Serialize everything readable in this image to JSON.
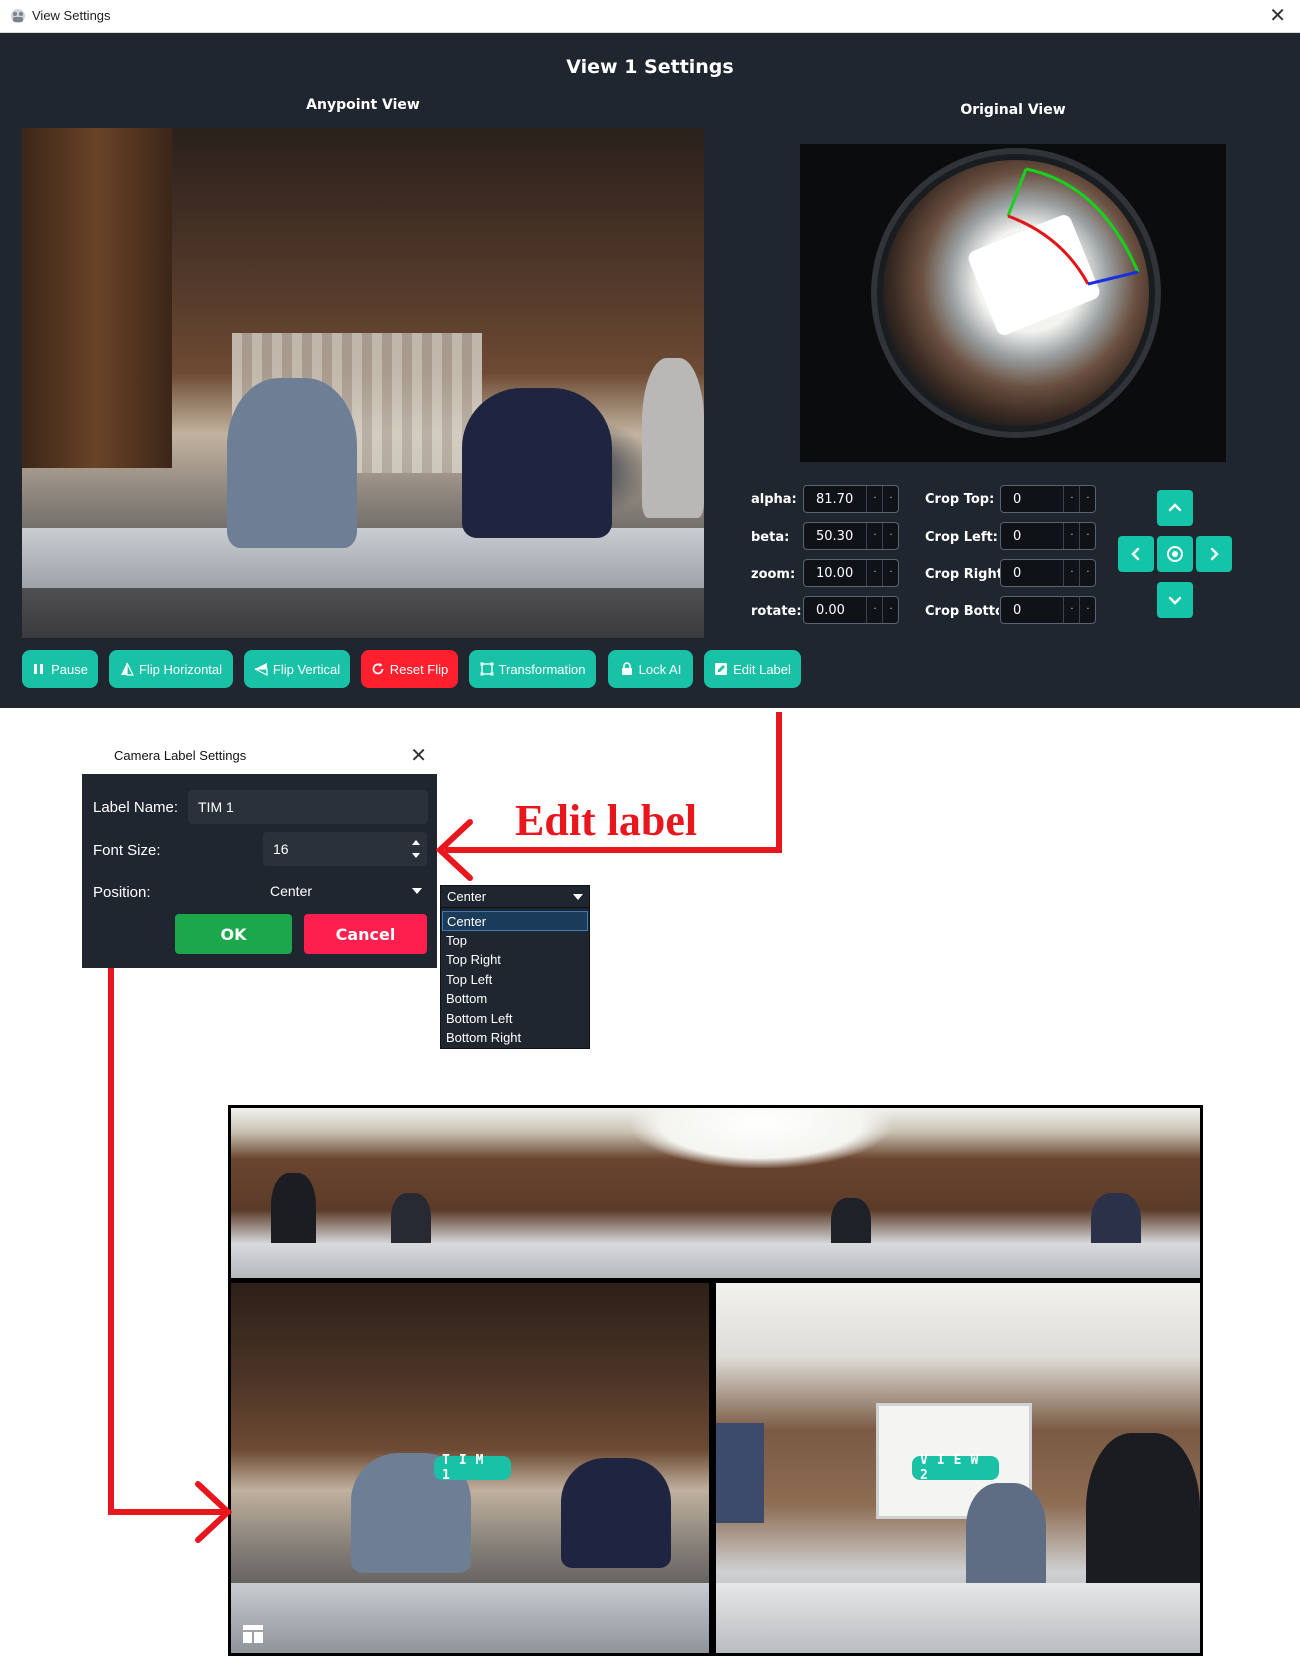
{
  "window": {
    "title": "View Settings",
    "heading": "View 1 Settings",
    "anypoint_label": "Anypoint View",
    "original_label": "Original View"
  },
  "params": {
    "alpha": {
      "label": "alpha:",
      "value": "81.70"
    },
    "beta": {
      "label": "beta:",
      "value": "50.30"
    },
    "zoom": {
      "label": "zoom:",
      "value": "10.00"
    },
    "rotate": {
      "label": "rotate:",
      "value": "0.00"
    }
  },
  "crop": {
    "top": {
      "label": "Crop Top:",
      "value": "0"
    },
    "left": {
      "label": "Crop Left:",
      "value": "0"
    },
    "right": {
      "label": "Crop Right:",
      "value": "0"
    },
    "bottom": {
      "label": "Crop Botto",
      "value": "0"
    }
  },
  "toolbar": {
    "pause": "Pause",
    "flip_h": "Flip Horizontal",
    "flip_v": "Flip Vertical",
    "reset_flip": "Reset Flip",
    "transformation": "Transformation",
    "lock_ai": "Lock AI",
    "edit_label": "Edit Label"
  },
  "annotation": {
    "text": "Edit label"
  },
  "dialog": {
    "title": "Camera Label Settings",
    "label_name_label": "Label Name:",
    "label_name_value": "TIM 1",
    "font_size_label": "Font Size:",
    "font_size_value": "16",
    "position_label": "Position:",
    "position_value": "Center",
    "ok": "OK",
    "cancel": "Cancel"
  },
  "dropdown": {
    "current": "Center",
    "options": [
      "Center",
      "Top",
      "Top Right",
      "Top Left",
      "Bottom",
      "Bottom Left",
      "Bottom Right"
    ]
  },
  "result": {
    "label_left": "TIM 1",
    "label_right": "VIEW 2"
  },
  "colors": {
    "accent": "#19c2a6",
    "danger": "#ff1f2d",
    "ok": "#1ba84a",
    "cancel": "#ff1f4e",
    "annotation": "#e8171d",
    "bg": "#1f2630"
  }
}
